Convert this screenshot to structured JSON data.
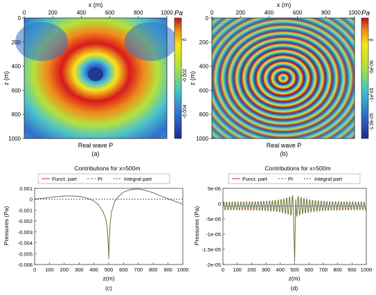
{
  "panels": [
    {
      "caption": "(a)",
      "xlabel_top": "x (m)",
      "ylabel": "z (m)",
      "xlabel_bottom": "Real wave P",
      "x_ticks": [
        "0",
        "200",
        "400",
        "600",
        "800",
        "1000"
      ],
      "y_ticks": [
        "0",
        "200",
        "400",
        "600",
        "800",
        "1000"
      ],
      "colorbar": {
        "unit": "Pa",
        "ticks": [
          "0",
          "-0.002",
          "-0.004"
        ]
      }
    },
    {
      "caption": "(b)",
      "xlabel_top": "x (m)",
      "ylabel": "z (m)",
      "xlabel_bottom": "Real wave P",
      "x_ticks": [
        "0",
        "200",
        "400",
        "600",
        "800",
        "1000"
      ],
      "y_ticks": [
        "0",
        "200",
        "400",
        "600",
        "800",
        "1000"
      ],
      "colorbar": {
        "unit": "Pa",
        "ticks": [
          "0",
          "-5e-06",
          "-1e-05",
          "-1.5e-05"
        ]
      }
    },
    {
      "caption": "(c)",
      "title": "Contributions for x=500m",
      "xlabel": "z(m)",
      "ylabel": "Pressures (Pa)",
      "x_ticks": [
        "0",
        "100",
        "200",
        "300",
        "400",
        "500",
        "600",
        "700",
        "800",
        "900",
        "1000"
      ],
      "y_ticks": [
        "0.001",
        "0",
        "-0.001",
        "-0.002",
        "-0.003",
        "-0.004",
        "-0.005",
        "-0.006"
      ],
      "legend": [
        "Funct. part",
        "Pr",
        "Integral part"
      ]
    },
    {
      "caption": "(d)",
      "title": "Contributions for x=500m",
      "xlabel": "z(m)",
      "ylabel": "Pressures (Pa)",
      "x_ticks": [
        "0",
        "100",
        "200",
        "300",
        "400",
        "500",
        "600",
        "700",
        "800",
        "900",
        "1000"
      ],
      "y_ticks": [
        "5e-06",
        "0",
        "-5e-06",
        "-1e-05",
        "-1.5e-05",
        "-2e-05"
      ],
      "legend": [
        "Funct. part",
        "Pr",
        "Integral part"
      ]
    }
  ],
  "chart_data": [
    {
      "type": "heatmap",
      "xlabel": "x (m)",
      "ylabel": "z (m)",
      "xlim": [
        0,
        1000
      ],
      "ylim": [
        1000,
        0
      ],
      "colorbar_range": [
        -0.0055,
        0.0012
      ],
      "source_point": [
        500,
        500
      ],
      "colors": {
        "low": "#2e3192",
        "mid": "#4fc3c9",
        "high": "#d7191c"
      }
    },
    {
      "type": "heatmap",
      "xlabel": "x (m)",
      "ylabel": "z (m)",
      "xlim": [
        0,
        1000
      ],
      "ylim": [
        1000,
        0
      ],
      "colorbar_range": [
        -1.8e-05,
        4e-06
      ],
      "source_point": [
        500,
        500
      ]
    },
    {
      "type": "line",
      "title": "Contributions for x=500m",
      "xlabel": "z(m)",
      "ylabel": "Pressures (Pa)",
      "xlim": [
        0,
        1000
      ],
      "ylim": [
        -0.006,
        0.001
      ],
      "series": [
        {
          "name": "Funct. part",
          "color": "#c0392b",
          "x": [
            0,
            50,
            100,
            150,
            200,
            250,
            300,
            350,
            400,
            430,
            460,
            480,
            490,
            495,
            498,
            500,
            502,
            505,
            510,
            520,
            540,
            570,
            600,
            650,
            700,
            750,
            800,
            850,
            900,
            950,
            990,
            1000
          ],
          "y": [
            0,
            8e-05,
            0.00016,
            0.00024,
            0.0003,
            0.0003,
            0.00026,
            0.00012,
            -0.00015,
            -0.0005,
            -0.0011,
            -0.0018,
            -0.0026,
            -0.0036,
            -0.0046,
            -0.0055,
            -0.0046,
            -0.0034,
            -0.0022,
            -0.0011,
            -0.0002,
            0.0003,
            0.00065,
            0.0009,
            0.00095,
            0.0008,
            0.0006,
            0.0003,
            5e-05,
            -0.0002,
            -0.0004,
            -0.0005
          ]
        },
        {
          "name": "Pr",
          "color": "#2e9e3a",
          "x": [
            0,
            50,
            100,
            150,
            200,
            250,
            300,
            350,
            400,
            430,
            460,
            480,
            490,
            495,
            498,
            500,
            502,
            505,
            510,
            520,
            540,
            570,
            600,
            650,
            700,
            750,
            800,
            850,
            900,
            950,
            990,
            1000
          ],
          "y": [
            0,
            8e-05,
            0.00016,
            0.00024,
            0.0003,
            0.0003,
            0.00026,
            0.00012,
            -0.00015,
            -0.0005,
            -0.0011,
            -0.0018,
            -0.0026,
            -0.0036,
            -0.0046,
            -0.0055,
            -0.0046,
            -0.0034,
            -0.0022,
            -0.0011,
            -0.0002,
            0.0003,
            0.00065,
            0.0009,
            0.00095,
            0.0008,
            0.0006,
            0.0003,
            5e-05,
            -0.0002,
            -0.0004,
            -0.0005
          ]
        },
        {
          "name": "Integral part",
          "color": "#1f3a93",
          "x": [
            0,
            1000
          ],
          "y": [
            0,
            0
          ]
        }
      ]
    },
    {
      "type": "line",
      "title": "Contributions for x=500m",
      "xlabel": "z(m)",
      "ylabel": "Pressures (Pa)",
      "xlim": [
        0,
        1000
      ],
      "ylim": [
        -2e-05,
        6e-06
      ],
      "series": [
        {
          "name": "Funct. part",
          "color": "#c0392b",
          "pattern": "oscillation",
          "period_m": 20,
          "peak": 4e-06,
          "min": -1.9e-05,
          "min_at": 500
        },
        {
          "name": "Pr",
          "color": "#2e9e3a",
          "pattern": "oscillation",
          "period_m": 20,
          "peak": 4e-06,
          "min": -1.9e-05,
          "min_at": 500
        },
        {
          "name": "Integral part",
          "color": "#1f3a93",
          "x": [
            0,
            1000
          ],
          "y": [
            0,
            0
          ]
        }
      ]
    }
  ]
}
